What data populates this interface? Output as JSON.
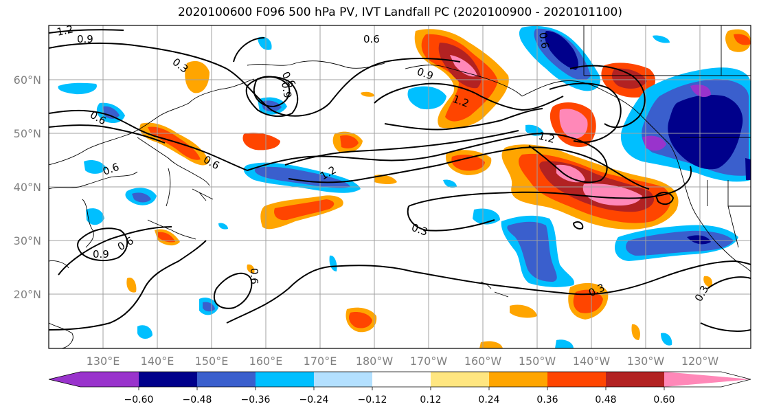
{
  "title": "2020100600 F096 500 hPa PV, IVT Landfall PC (2020100900 - 2020101100)",
  "map": {
    "lat_labels": [
      "60°N",
      "50°N",
      "40°N",
      "30°N",
      "20°N"
    ],
    "lon_labels": [
      "130°E",
      "140°E",
      "150°E",
      "160°E",
      "170°E",
      "180°W",
      "170°W",
      "160°W",
      "150°W",
      "140°W",
      "130°W",
      "120°W"
    ],
    "contour_levels": [
      "0.3",
      "0.6",
      "0.9",
      "1.2"
    ],
    "contour_labels": [
      {
        "text": "1.2"
      },
      {
        "text": "0.9"
      },
      {
        "text": "0.3"
      },
      {
        "text": "0.6"
      },
      {
        "text": "0.6"
      },
      {
        "text": "0.9"
      },
      {
        "text": "1.2"
      },
      {
        "text": "1.2"
      },
      {
        "text": "0.6"
      },
      {
        "text": "0.6"
      },
      {
        "text": "0.6"
      },
      {
        "text": "1.2"
      },
      {
        "text": "0.9"
      },
      {
        "text": "0.6"
      },
      {
        "text": "0.3"
      },
      {
        "text": "0.9"
      },
      {
        "text": "0.6"
      },
      {
        "text": "0.6"
      },
      {
        "text": "0.3"
      },
      {
        "text": "0.3"
      }
    ]
  },
  "colorbar": {
    "colors": [
      "#9933cc",
      "#00008b",
      "#3a5fcd",
      "#00bfff",
      "#b3e0ff",
      "#ffffff",
      "#ffe680",
      "#ffa500",
      "#ff4500",
      "#b22222",
      "#ff88b8"
    ],
    "tick_labels": [
      "−0.60",
      "−0.48",
      "−0.36",
      "−0.24",
      "−0.12",
      "0.12",
      "0.24",
      "0.36",
      "0.48",
      "0.60"
    ]
  }
}
